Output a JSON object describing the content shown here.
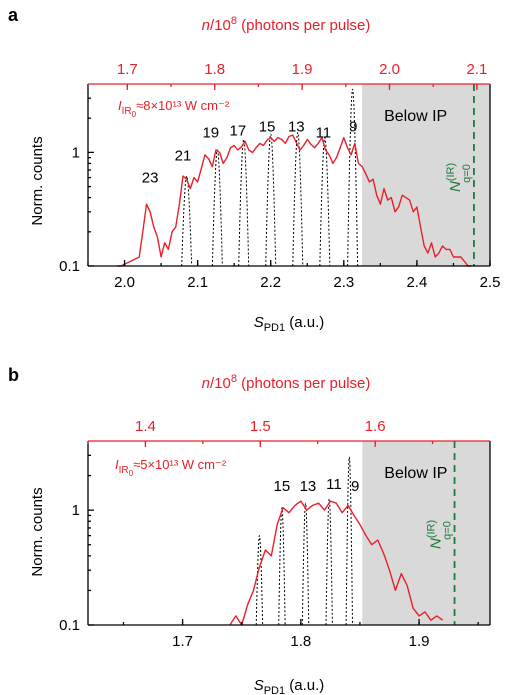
{
  "chart_data": [
    {
      "panel": "a",
      "type": "line",
      "top_axis": {
        "label": "n/10⁸ (photons per pulse)",
        "ticks": [
          1.7,
          1.8,
          1.9,
          2.0,
          2.1
        ],
        "tick_labels": [
          "1.7",
          "1.8",
          "1.9",
          "2.0",
          "2.1"
        ],
        "xlim": [
          1.655,
          2.115
        ]
      },
      "xlabel": "S",
      "xlabel_sub": "PD1",
      "xlabel_suffix": " (a.u.)",
      "ylabel": "Norm. counts",
      "xlim": [
        1.95,
        2.5
      ],
      "ylim": [
        0.1,
        4
      ],
      "y_scale": "log",
      "x_ticks": [
        2.0,
        2.1,
        2.2,
        2.3,
        2.4,
        2.5
      ],
      "x_tick_labels": [
        "2.0",
        "2.1",
        "2.2",
        "2.3",
        "2.4",
        "2.5"
      ],
      "y_ticks": [
        0.1,
        1
      ],
      "y_tick_labels": [
        "0.1",
        "1"
      ],
      "intensity_label": {
        "prefix": "I",
        "sub": "IR",
        "subsub": "0",
        "text": "≈8×10¹³ W cm⁻²"
      },
      "shaded_region": {
        "label": "Below IP",
        "x_start": 2.325,
        "x_end": 2.5
      },
      "threshold": {
        "x": 2.478,
        "label_main": "N",
        "label_sup": "(IR)",
        "label_sub": "q=0"
      },
      "harmonic_labels": [
        {
          "order": "23",
          "x": 2.035,
          "y": 0.48
        },
        {
          "order": "21",
          "x": 2.08,
          "y": 0.75
        },
        {
          "order": "19",
          "x": 2.118,
          "y": 1.2
        },
        {
          "order": "17",
          "x": 2.155,
          "y": 1.25
        },
        {
          "order": "15",
          "x": 2.195,
          "y": 1.35
        },
        {
          "order": "13",
          "x": 2.235,
          "y": 1.35
        },
        {
          "order": "11",
          "x": 2.272,
          "y": 1.2
        },
        {
          "order": "9",
          "x": 2.313,
          "y": 1.35
        }
      ],
      "dotted_peaks": [
        {
          "x": 2.085,
          "h": 0.62
        },
        {
          "x": 2.127,
          "h": 1.05
        },
        {
          "x": 2.163,
          "h": 1.3
        },
        {
          "x": 2.2,
          "h": 1.45
        },
        {
          "x": 2.237,
          "h": 1.5
        },
        {
          "x": 2.274,
          "h": 1.35
        },
        {
          "x": 2.312,
          "h": 3.6
        }
      ],
      "series": [
        {
          "x": [
            1.99,
            1.995,
            2.02,
            2.025,
            2.03,
            2.035,
            2.04,
            2.045,
            2.05,
            2.055,
            2.06,
            2.065,
            2.07,
            2.075,
            2.08,
            2.085,
            2.09,
            2.095,
            2.1,
            2.105,
            2.11,
            2.115,
            2.12,
            2.125,
            2.13,
            2.135,
            2.14,
            2.145,
            2.15,
            2.155,
            2.16,
            2.165,
            2.17,
            2.175,
            2.18,
            2.185,
            2.19,
            2.195,
            2.2,
            2.205,
            2.21,
            2.215,
            2.22,
            2.225,
            2.23,
            2.235,
            2.24,
            2.245,
            2.25,
            2.255,
            2.26,
            2.265,
            2.27,
            2.275,
            2.28,
            2.285,
            2.29,
            2.295,
            2.3,
            2.305,
            2.31,
            2.315,
            2.32,
            2.325,
            2.33,
            2.335,
            2.34,
            2.345,
            2.35,
            2.355,
            2.36,
            2.365,
            2.37,
            2.375,
            2.38,
            2.385,
            2.39,
            2.395,
            2.4,
            2.405,
            2.41,
            2.415,
            2.42,
            2.425,
            2.43,
            2.435,
            2.44,
            2.445,
            2.45,
            2.455,
            2.46,
            2.465,
            2.47,
            2.475
          ],
          "y": [
            0.1,
            0.1,
            0.12,
            0.2,
            0.35,
            0.3,
            0.22,
            0.18,
            0.12,
            0.16,
            0.14,
            0.2,
            0.22,
            0.35,
            0.62,
            0.58,
            0.48,
            0.6,
            0.55,
            0.72,
            0.95,
            0.88,
            0.75,
            1.05,
            1.0,
            0.8,
            0.9,
            1.1,
            1.15,
            1.05,
            1.12,
            1.25,
            1.05,
            1.0,
            1.1,
            1.2,
            1.15,
            1.28,
            1.35,
            1.25,
            1.35,
            1.3,
            1.2,
            1.38,
            1.42,
            1.22,
            1.05,
            1.15,
            1.3,
            1.18,
            1.1,
            1.2,
            1.35,
            1.05,
            0.95,
            0.8,
            0.9,
            1.1,
            1.35,
            1.1,
            0.95,
            1.2,
            0.8,
            0.75,
            0.65,
            0.55,
            0.58,
            0.42,
            0.35,
            0.48,
            0.38,
            0.4,
            0.3,
            0.33,
            0.42,
            0.4,
            0.38,
            0.3,
            0.33,
            0.22,
            0.15,
            0.13,
            0.16,
            0.12,
            0.13,
            0.15,
            0.14,
            0.14,
            0.12,
            0.12,
            0.12,
            0.11,
            0.1,
            0.1
          ]
        }
      ]
    },
    {
      "panel": "b",
      "type": "line",
      "top_axis": {
        "label": "n/10⁸ (photons per pulse)",
        "ticks": [
          1.4,
          1.5,
          1.6
        ],
        "tick_labels": [
          "1.4",
          "1.5",
          "1.6"
        ],
        "xlim": [
          1.35,
          1.7
        ]
      },
      "xlabel": "S",
      "xlabel_sub": "PD1",
      "xlabel_suffix": " (a.u.)",
      "ylabel": "Norm. counts",
      "xlim": [
        1.62,
        1.96
      ],
      "ylim": [
        0.1,
        4
      ],
      "y_scale": "log",
      "x_ticks": [
        1.7,
        1.8,
        1.9
      ],
      "x_tick_labels": [
        "1.7",
        "1.8",
        "1.9"
      ],
      "y_ticks": [
        0.1,
        1
      ],
      "y_tick_labels": [
        "0.1",
        "1"
      ],
      "intensity_label": {
        "prefix": "I",
        "sub": "IR",
        "subsub": "0",
        "text": "≈5×10¹³ W cm⁻²"
      },
      "shaded_region": {
        "label": "Below IP",
        "x_start": 1.852,
        "x_end": 1.96
      },
      "threshold": {
        "x": 1.93,
        "label_main": "N",
        "label_sup": "(IR)",
        "label_sub": "q=0"
      },
      "harmonic_labels": [
        {
          "order": "15",
          "x": 1.784,
          "y": 1.3
        },
        {
          "order": "13",
          "x": 1.806,
          "y": 1.3
        },
        {
          "order": "11",
          "x": 1.828,
          "y": 1.35
        },
        {
          "order": "9",
          "x": 1.846,
          "y": 1.3
        }
      ],
      "dotted_peaks": [
        {
          "x": 1.765,
          "h": 0.6
        },
        {
          "x": 1.784,
          "h": 1.05
        },
        {
          "x": 1.804,
          "h": 1.15
        },
        {
          "x": 1.824,
          "h": 1.25
        },
        {
          "x": 1.841,
          "h": 2.9
        }
      ],
      "series": [
        {
          "x": [
            1.74,
            1.745,
            1.75,
            1.755,
            1.76,
            1.765,
            1.77,
            1.775,
            1.78,
            1.785,
            1.79,
            1.795,
            1.8,
            1.805,
            1.81,
            1.815,
            1.82,
            1.825,
            1.83,
            1.835,
            1.84,
            1.845,
            1.85,
            1.855,
            1.86,
            1.865,
            1.87,
            1.875,
            1.88,
            1.885,
            1.89,
            1.895,
            1.9,
            1.905,
            1.91,
            1.915,
            1.92
          ],
          "y": [
            0.1,
            0.12,
            0.1,
            0.15,
            0.2,
            0.32,
            0.45,
            0.4,
            0.75,
            1.05,
            0.95,
            1.1,
            1.2,
            1.0,
            1.1,
            1.15,
            1.0,
            1.2,
            1.15,
            0.95,
            1.1,
            0.9,
            0.75,
            0.6,
            0.5,
            0.55,
            0.42,
            0.3,
            0.2,
            0.28,
            0.22,
            0.14,
            0.12,
            0.13,
            0.11,
            0.12,
            0.11
          ]
        }
      ]
    }
  ]
}
